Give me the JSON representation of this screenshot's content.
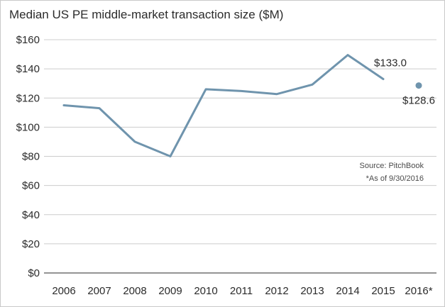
{
  "title": "Median US PE middle-market transaction size ($M)",
  "source_note": "Source: PitchBook",
  "asof_note": "*As of 9/30/2016",
  "colors": {
    "line": "#6f94ad",
    "grid": "#cccccc",
    "axis": "#555555",
    "text": "#2b2b2b"
  },
  "chart_data": {
    "type": "line",
    "title": "Median US PE middle-market transaction size ($M)",
    "xlabel": "",
    "ylabel": "",
    "categories": [
      "2006",
      "2007",
      "2008",
      "2009",
      "2010",
      "2011",
      "2012",
      "2013",
      "2014",
      "2015",
      "2016*"
    ],
    "series": [
      {
        "values": [
          115.0,
          113.0,
          90.0,
          80.0,
          126.0,
          124.8,
          122.7,
          129.2,
          149.5,
          133.0,
          null
        ]
      },
      {
        "values": [
          null,
          null,
          null,
          null,
          null,
          null,
          null,
          null,
          null,
          null,
          128.6
        ],
        "style": "point"
      }
    ],
    "y_ticks": [
      "$0",
      "$20",
      "$40",
      "$60",
      "$80",
      "$100",
      "$120",
      "$140",
      "$160"
    ],
    "ylim": [
      0,
      160
    ],
    "grid": true,
    "data_labels": [
      {
        "category": "2015",
        "text": "$133.0"
      },
      {
        "category": "2016*",
        "text": "$128.6"
      }
    ]
  }
}
